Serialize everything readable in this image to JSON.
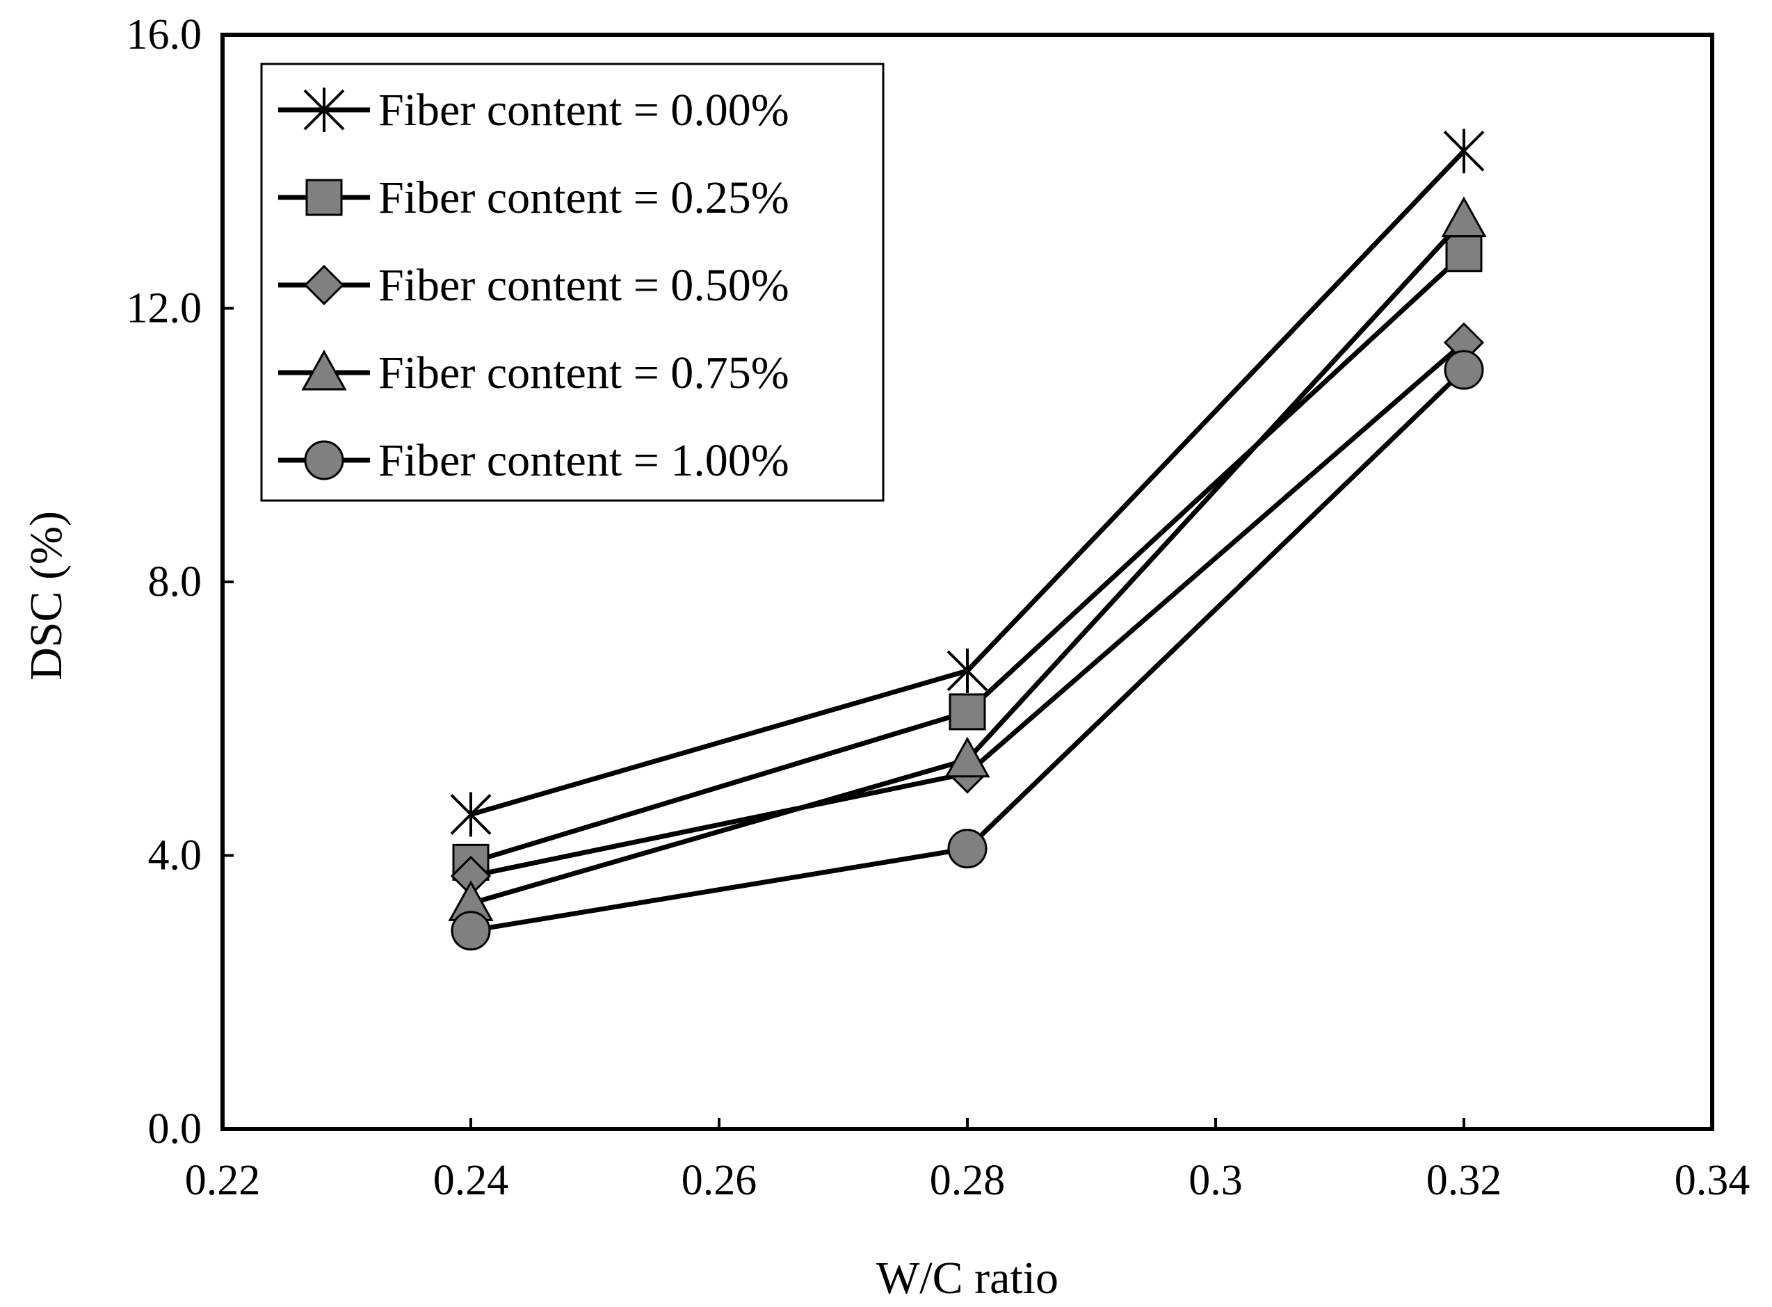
{
  "chart_data": {
    "type": "line",
    "title": "",
    "xlabel": "W/C ratio",
    "ylabel": "DSC (%)",
    "xlim": [
      0.22,
      0.34
    ],
    "ylim": [
      0.0,
      16.0
    ],
    "x_ticks": [
      0.22,
      0.24,
      0.26,
      0.28,
      0.3,
      0.32,
      0.34
    ],
    "x_tick_labels": [
      "0.22",
      "0.24",
      "0.26",
      "0.28",
      "0.3",
      "0.32",
      "0.34"
    ],
    "y_ticks": [
      0.0,
      4.0,
      8.0,
      12.0,
      16.0
    ],
    "y_tick_labels": [
      "0.0",
      "4.0",
      "8.0",
      "12.0",
      "16.0"
    ],
    "grid": false,
    "legend_position": "top-left",
    "x": [
      0.24,
      0.28,
      0.32
    ],
    "series": [
      {
        "name": "Fiber content = 0.00%",
        "marker": "asterisk",
        "values": [
          4.6,
          6.7,
          14.3
        ]
      },
      {
        "name": "Fiber content = 0.25%",
        "marker": "square",
        "values": [
          3.9,
          6.1,
          12.8
        ]
      },
      {
        "name": "Fiber content = 0.50%",
        "marker": "diamond",
        "values": [
          3.7,
          5.2,
          11.5
        ]
      },
      {
        "name": "Fiber content = 0.75%",
        "marker": "triangle",
        "values": [
          3.3,
          5.4,
          13.3
        ]
      },
      {
        "name": "Fiber content = 1.00%",
        "marker": "circle",
        "values": [
          2.9,
          4.1,
          11.1
        ]
      }
    ],
    "colors": {
      "line": "#000000",
      "marker_fill": "#808080",
      "marker_stroke": "#000000"
    }
  }
}
